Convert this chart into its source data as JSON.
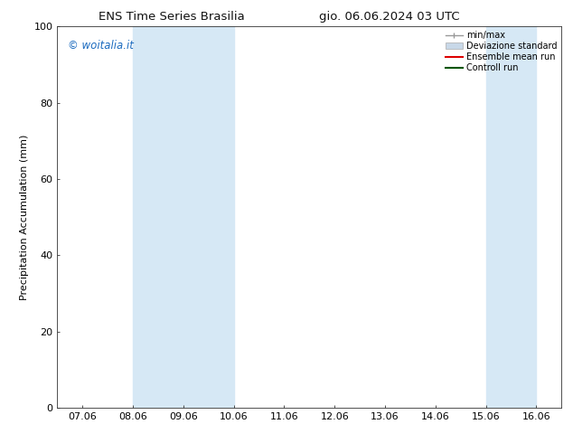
{
  "title_left": "ENS Time Series Brasilia",
  "title_right": "gio. 06.06.2024 03 UTC",
  "ylabel": "Precipitation Accumulation (mm)",
  "ylim": [
    0,
    100
  ],
  "yticks": [
    0,
    20,
    40,
    60,
    80,
    100
  ],
  "x_labels": [
    "07.06",
    "08.06",
    "09.06",
    "10.06",
    "11.06",
    "12.06",
    "13.06",
    "14.06",
    "15.06",
    "16.06"
  ],
  "x_values": [
    0,
    1,
    2,
    3,
    4,
    5,
    6,
    7,
    8,
    9
  ],
  "shaded_bands": [
    {
      "xmin": 1,
      "xmax": 3,
      "color": "#d6e8f5"
    },
    {
      "xmin": 8,
      "xmax": 9,
      "color": "#d6e8f5"
    }
  ],
  "watermark": "© woitalia.it",
  "watermark_color": "#1a6abf",
  "legend_items": [
    {
      "label": "min/max",
      "color": "#999999",
      "lw": 1.0,
      "ls": "-",
      "type": "line_caps"
    },
    {
      "label": "Deviazione standard",
      "color": "#c8d8e8",
      "lw": 8,
      "ls": "-",
      "type": "band"
    },
    {
      "label": "Ensemble mean run",
      "color": "#dd0000",
      "lw": 1.5,
      "ls": "-",
      "type": "line"
    },
    {
      "label": "Controll run",
      "color": "#005500",
      "lw": 1.5,
      "ls": "-",
      "type": "line"
    }
  ],
  "bg_color": "#ffffff",
  "plot_bg_color": "#ffffff",
  "font_size": 8,
  "title_font_size": 9.5
}
